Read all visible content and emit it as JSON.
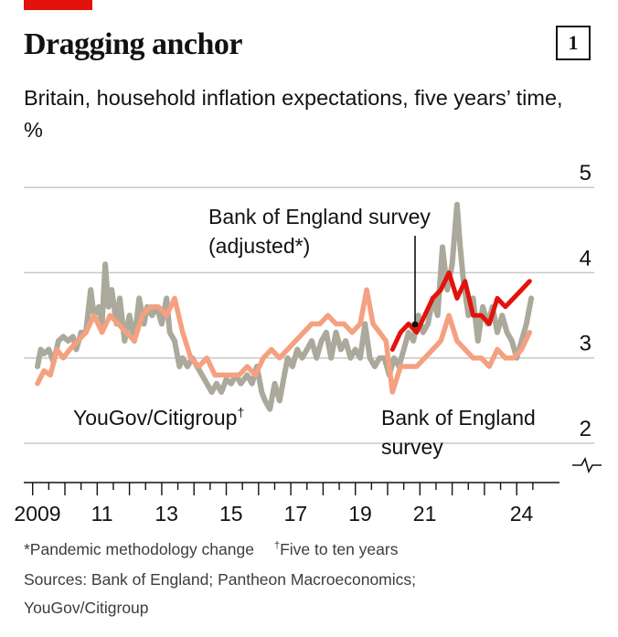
{
  "header": {
    "title": "Dragging anchor",
    "subtitle": "Britain, household inflation expectations, five years’ time, %",
    "chart_number": "1"
  },
  "colors": {
    "accent": "#e3120b",
    "yougov": "#aaa99b",
    "boe_unadjusted": "#f5a080",
    "boe_adjusted": "#e3120b",
    "gridline": "#c8c8c8"
  },
  "annotations": {
    "boe_adjusted_line1": "Bank of England survey",
    "boe_adjusted_line2": "(adjusted*)",
    "yougov_label": "YouGov/Citigroup",
    "yougov_mark": "†",
    "boe_line1": "Bank of England",
    "boe_line2": "survey"
  },
  "footnotes": {
    "note1": "*Pandemic methodology change",
    "note2_mark": "†",
    "note2": "Five to ten years",
    "sources": "Sources: Bank of England; Pantheon Macroeconomics;",
    "sources2": "YouGov/Citigroup"
  },
  "chart_data": {
    "type": "line",
    "x_tick_labels": [
      "2009",
      "11",
      "13",
      "15",
      "17",
      "19",
      "21",
      "24"
    ],
    "y_tick_labels": [
      "5",
      "4",
      "3",
      "2"
    ],
    "ylim": [
      2,
      5
    ],
    "xlim": [
      2008.8,
      2024.6
    ],
    "broken_axis": true,
    "grid": true,
    "series": [
      {
        "name": "YouGov/Citigroup",
        "points": [
          [
            2009.0,
            2.9
          ],
          [
            2009.1,
            3.1
          ],
          [
            2009.2,
            3.05
          ],
          [
            2009.35,
            3.1
          ],
          [
            2009.5,
            2.95
          ],
          [
            2009.65,
            3.2
          ],
          [
            2009.8,
            3.25
          ],
          [
            2009.95,
            3.2
          ],
          [
            2010.1,
            3.25
          ],
          [
            2010.2,
            3.1
          ],
          [
            2010.35,
            3.3
          ],
          [
            2010.5,
            3.3
          ],
          [
            2010.65,
            3.8
          ],
          [
            2010.75,
            3.5
          ],
          [
            2010.9,
            3.6
          ],
          [
            2011.0,
            3.4
          ],
          [
            2011.1,
            4.1
          ],
          [
            2011.2,
            3.6
          ],
          [
            2011.3,
            3.8
          ],
          [
            2011.45,
            3.4
          ],
          [
            2011.55,
            3.7
          ],
          [
            2011.7,
            3.2
          ],
          [
            2011.85,
            3.5
          ],
          [
            2012.0,
            3.2
          ],
          [
            2012.15,
            3.7
          ],
          [
            2012.3,
            3.4
          ],
          [
            2012.4,
            3.6
          ],
          [
            2012.55,
            3.5
          ],
          [
            2012.7,
            3.6
          ],
          [
            2012.85,
            3.4
          ],
          [
            2013.0,
            3.7
          ],
          [
            2013.1,
            3.3
          ],
          [
            2013.25,
            3.2
          ],
          [
            2013.4,
            2.9
          ],
          [
            2013.5,
            3.0
          ],
          [
            2013.65,
            2.9
          ],
          [
            2013.8,
            3.0
          ],
          [
            2013.95,
            2.9
          ],
          [
            2014.1,
            2.8
          ],
          [
            2014.25,
            2.7
          ],
          [
            2014.4,
            2.6
          ],
          [
            2014.55,
            2.7
          ],
          [
            2014.7,
            2.6
          ],
          [
            2014.85,
            2.75
          ],
          [
            2015.0,
            2.7
          ],
          [
            2015.15,
            2.8
          ],
          [
            2015.3,
            2.7
          ],
          [
            2015.5,
            2.8
          ],
          [
            2015.65,
            2.7
          ],
          [
            2015.8,
            2.9
          ],
          [
            2015.95,
            2.6
          ],
          [
            2016.05,
            2.5
          ],
          [
            2016.2,
            2.4
          ],
          [
            2016.35,
            2.7
          ],
          [
            2016.5,
            2.5
          ],
          [
            2016.6,
            2.7
          ],
          [
            2016.75,
            3.0
          ],
          [
            2016.9,
            2.9
          ],
          [
            2017.05,
            3.1
          ],
          [
            2017.2,
            3.0
          ],
          [
            2017.35,
            3.1
          ],
          [
            2017.5,
            3.2
          ],
          [
            2017.65,
            3.0
          ],
          [
            2017.8,
            3.2
          ],
          [
            2017.95,
            3.3
          ],
          [
            2018.1,
            3.0
          ],
          [
            2018.25,
            3.3
          ],
          [
            2018.4,
            3.1
          ],
          [
            2018.55,
            3.2
          ],
          [
            2018.7,
            3.0
          ],
          [
            2018.85,
            3.1
          ],
          [
            2019.0,
            3.0
          ],
          [
            2019.15,
            3.4
          ],
          [
            2019.3,
            3.0
          ],
          [
            2019.45,
            2.9
          ],
          [
            2019.6,
            3.0
          ],
          [
            2019.75,
            3.0
          ],
          [
            2019.9,
            2.8
          ],
          [
            2020.05,
            3.0
          ],
          [
            2020.2,
            2.9
          ],
          [
            2020.35,
            3.1
          ],
          [
            2020.5,
            3.3
          ],
          [
            2020.65,
            3.2
          ],
          [
            2020.8,
            3.5
          ],
          [
            2020.95,
            3.3
          ],
          [
            2021.1,
            3.4
          ],
          [
            2021.25,
            3.7
          ],
          [
            2021.4,
            3.5
          ],
          [
            2021.55,
            4.3
          ],
          [
            2021.7,
            3.8
          ],
          [
            2021.85,
            4.1
          ],
          [
            2022.0,
            4.8
          ],
          [
            2022.1,
            4.3
          ],
          [
            2022.2,
            3.9
          ],
          [
            2022.35,
            3.5
          ],
          [
            2022.5,
            3.7
          ],
          [
            2022.65,
            3.2
          ],
          [
            2022.8,
            3.6
          ],
          [
            2022.95,
            3.4
          ],
          [
            2023.1,
            3.6
          ],
          [
            2023.25,
            3.3
          ],
          [
            2023.4,
            3.5
          ],
          [
            2023.55,
            3.3
          ],
          [
            2023.7,
            3.2
          ],
          [
            2023.85,
            3.0
          ],
          [
            2024.0,
            3.2
          ],
          [
            2024.15,
            3.4
          ],
          [
            2024.3,
            3.7
          ]
        ]
      },
      {
        "name": "Bank of England survey",
        "points": [
          [
            2009.0,
            2.7
          ],
          [
            2009.2,
            2.85
          ],
          [
            2009.4,
            2.8
          ],
          [
            2009.6,
            3.1
          ],
          [
            2009.8,
            3.0
          ],
          [
            2010.0,
            3.1
          ],
          [
            2010.25,
            3.2
          ],
          [
            2010.5,
            3.3
          ],
          [
            2010.75,
            3.5
          ],
          [
            2011.0,
            3.3
          ],
          [
            2011.25,
            3.5
          ],
          [
            2011.5,
            3.4
          ],
          [
            2011.75,
            3.3
          ],
          [
            2012.0,
            3.2
          ],
          [
            2012.25,
            3.5
          ],
          [
            2012.5,
            3.6
          ],
          [
            2012.75,
            3.6
          ],
          [
            2013.0,
            3.5
          ],
          [
            2013.25,
            3.7
          ],
          [
            2013.5,
            3.3
          ],
          [
            2013.75,
            3.0
          ],
          [
            2014.0,
            2.9
          ],
          [
            2014.25,
            3.0
          ],
          [
            2014.5,
            2.8
          ],
          [
            2014.75,
            2.8
          ],
          [
            2015.0,
            2.8
          ],
          [
            2015.25,
            2.8
          ],
          [
            2015.5,
            2.9
          ],
          [
            2015.75,
            2.8
          ],
          [
            2016.0,
            3.0
          ],
          [
            2016.25,
            3.1
          ],
          [
            2016.5,
            3.0
          ],
          [
            2016.75,
            3.1
          ],
          [
            2017.0,
            3.2
          ],
          [
            2017.25,
            3.3
          ],
          [
            2017.5,
            3.4
          ],
          [
            2017.75,
            3.4
          ],
          [
            2018.0,
            3.5
          ],
          [
            2018.25,
            3.4
          ],
          [
            2018.5,
            3.4
          ],
          [
            2018.75,
            3.3
          ],
          [
            2019.0,
            3.4
          ],
          [
            2019.2,
            3.8
          ],
          [
            2019.4,
            3.4
          ],
          [
            2019.6,
            3.3
          ],
          [
            2019.8,
            3.2
          ],
          [
            2020.0,
            2.6
          ],
          [
            2020.25,
            2.9
          ],
          [
            2020.5,
            2.9
          ],
          [
            2020.75,
            2.9
          ],
          [
            2021.0,
            3.0
          ],
          [
            2021.25,
            3.1
          ],
          [
            2021.5,
            3.2
          ],
          [
            2021.75,
            3.5
          ],
          [
            2022.0,
            3.2
          ],
          [
            2022.25,
            3.1
          ],
          [
            2022.5,
            3.0
          ],
          [
            2022.75,
            3.0
          ],
          [
            2023.0,
            2.9
          ],
          [
            2023.25,
            3.1
          ],
          [
            2023.5,
            3.0
          ],
          [
            2023.75,
            3.0
          ],
          [
            2024.0,
            3.1
          ],
          [
            2024.25,
            3.3
          ]
        ]
      },
      {
        "name": "Bank of England survey (adjusted*)",
        "points": [
          [
            2020.0,
            3.1
          ],
          [
            2020.25,
            3.3
          ],
          [
            2020.5,
            3.4
          ],
          [
            2020.75,
            3.3
          ],
          [
            2021.0,
            3.5
          ],
          [
            2021.25,
            3.7
          ],
          [
            2021.5,
            3.8
          ],
          [
            2021.75,
            4.0
          ],
          [
            2022.0,
            3.7
          ],
          [
            2022.25,
            3.9
          ],
          [
            2022.5,
            3.5
          ],
          [
            2022.75,
            3.5
          ],
          [
            2023.0,
            3.4
          ],
          [
            2023.25,
            3.7
          ],
          [
            2023.5,
            3.6
          ],
          [
            2023.75,
            3.7
          ],
          [
            2024.0,
            3.8
          ],
          [
            2024.25,
            3.9
          ]
        ]
      }
    ]
  }
}
